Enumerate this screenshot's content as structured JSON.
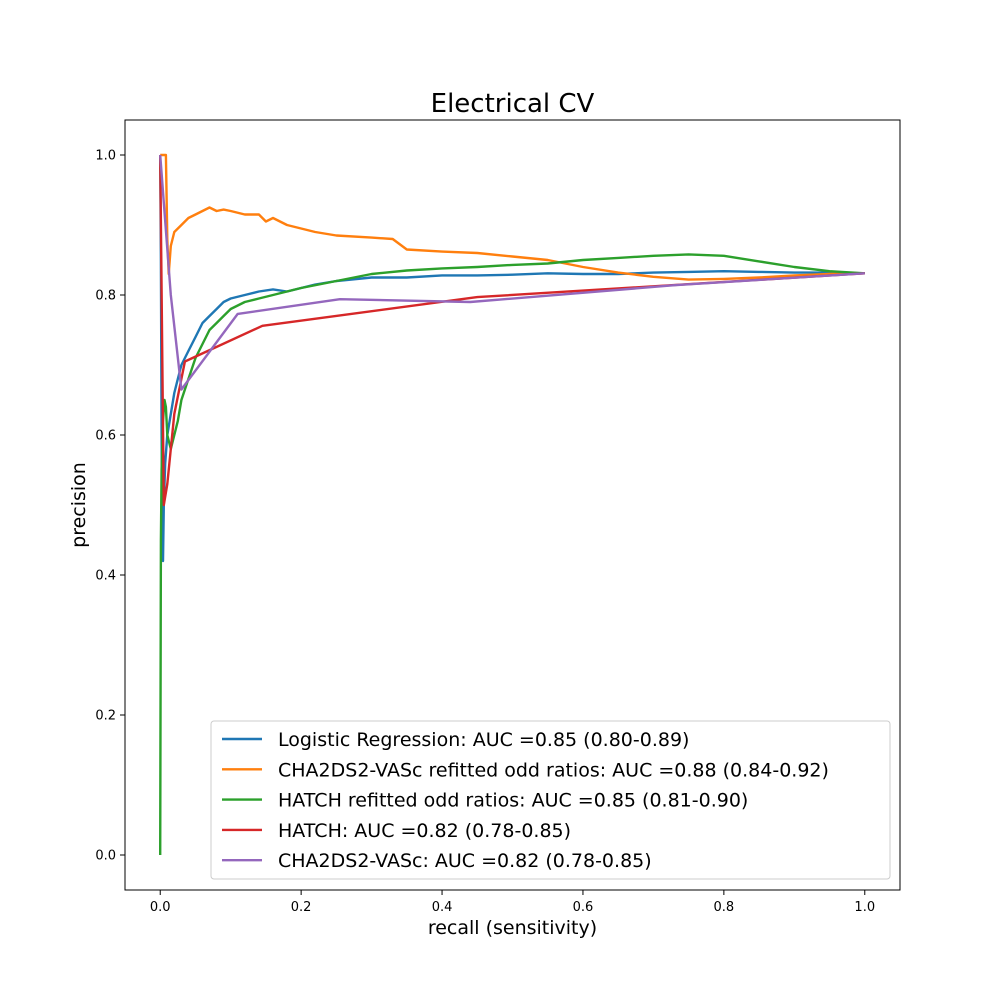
{
  "chart_data": {
    "type": "line",
    "title": "Electrical CV",
    "xlabel": "recall (sensitivity)",
    "ylabel": "precision",
    "xlim": [
      -0.05,
      1.05
    ],
    "ylim": [
      -0.05,
      1.05
    ],
    "xticks": [
      0.0,
      0.2,
      0.4,
      0.6,
      0.8,
      1.0
    ],
    "yticks": [
      0.0,
      0.2,
      0.4,
      0.6,
      0.8,
      1.0
    ],
    "xtick_labels": [
      "0.0",
      "0.2",
      "0.4",
      "0.6",
      "0.8",
      "1.0"
    ],
    "ytick_labels": [
      "0.0",
      "0.2",
      "0.4",
      "0.6",
      "0.8",
      "1.0"
    ],
    "grid": false,
    "legend_position": "lower-right",
    "series": [
      {
        "name": "Logistic Regression: AUC =0.85 (0.80-0.89)",
        "color": "#1f77b4",
        "x": [
          0.0,
          0.001,
          0.002,
          0.003,
          0.004,
          0.005,
          0.007,
          0.01,
          0.015,
          0.02,
          0.025,
          0.03,
          0.035,
          0.04,
          0.05,
          0.06,
          0.07,
          0.08,
          0.09,
          0.1,
          0.12,
          0.14,
          0.16,
          0.18,
          0.2,
          0.22,
          0.25,
          0.3,
          0.35,
          0.4,
          0.45,
          0.5,
          0.55,
          0.6,
          0.65,
          0.7,
          0.75,
          0.8,
          0.85,
          0.9,
          0.95,
          1.0
        ],
        "y": [
          1.0,
          0.85,
          0.6,
          0.45,
          0.42,
          0.5,
          0.56,
          0.6,
          0.63,
          0.66,
          0.68,
          0.7,
          0.71,
          0.72,
          0.74,
          0.76,
          0.77,
          0.78,
          0.79,
          0.795,
          0.8,
          0.805,
          0.808,
          0.805,
          0.81,
          0.815,
          0.82,
          0.825,
          0.825,
          0.828,
          0.828,
          0.829,
          0.831,
          0.83,
          0.83,
          0.832,
          0.833,
          0.834,
          0.833,
          0.832,
          0.832,
          0.831
        ]
      },
      {
        "name": "CHA2DS2-VASc refitted odd ratios: AUC =0.88 (0.84-0.92)",
        "color": "#ff7f0e",
        "x": [
          0.0,
          0.003,
          0.006,
          0.008,
          0.01,
          0.012,
          0.015,
          0.02,
          0.03,
          0.04,
          0.05,
          0.06,
          0.07,
          0.08,
          0.09,
          0.1,
          0.12,
          0.14,
          0.15,
          0.16,
          0.18,
          0.2,
          0.22,
          0.25,
          0.3,
          0.33,
          0.35,
          0.4,
          0.45,
          0.5,
          0.55,
          0.6,
          0.65,
          0.7,
          0.75,
          0.8,
          0.85,
          0.9,
          0.95,
          1.0
        ],
        "y": [
          1.0,
          1.0,
          1.0,
          1.0,
          0.88,
          0.83,
          0.87,
          0.89,
          0.9,
          0.91,
          0.915,
          0.92,
          0.925,
          0.92,
          0.922,
          0.92,
          0.915,
          0.915,
          0.905,
          0.91,
          0.9,
          0.895,
          0.89,
          0.885,
          0.882,
          0.88,
          0.865,
          0.862,
          0.86,
          0.855,
          0.85,
          0.84,
          0.832,
          0.826,
          0.822,
          0.823,
          0.825,
          0.828,
          0.83,
          0.831
        ]
      },
      {
        "name": "HATCH refitted odd ratios: AUC =0.85 (0.81-0.90)",
        "color": "#2ca02c",
        "x": [
          0.0,
          0.001,
          0.002,
          0.004,
          0.006,
          0.008,
          0.01,
          0.015,
          0.02,
          0.025,
          0.03,
          0.04,
          0.05,
          0.06,
          0.07,
          0.08,
          0.09,
          0.1,
          0.12,
          0.14,
          0.16,
          0.18,
          0.2,
          0.25,
          0.3,
          0.35,
          0.4,
          0.45,
          0.5,
          0.55,
          0.6,
          0.65,
          0.7,
          0.75,
          0.8,
          0.85,
          0.9,
          0.95,
          1.0
        ],
        "y": [
          0.0,
          0.45,
          0.55,
          0.62,
          0.65,
          0.64,
          0.6,
          0.58,
          0.6,
          0.62,
          0.65,
          0.68,
          0.71,
          0.73,
          0.75,
          0.76,
          0.77,
          0.78,
          0.79,
          0.795,
          0.8,
          0.805,
          0.81,
          0.82,
          0.83,
          0.835,
          0.838,
          0.84,
          0.843,
          0.845,
          0.85,
          0.853,
          0.856,
          0.858,
          0.856,
          0.848,
          0.84,
          0.834,
          0.831
        ]
      },
      {
        "name": "HATCH: AUC =0.82 (0.78-0.85)",
        "color": "#d62728",
        "x": [
          0.0,
          0.005,
          0.01,
          0.02,
          0.035,
          0.145,
          0.45,
          1.0
        ],
        "y": [
          1.0,
          0.5,
          0.53,
          0.63,
          0.705,
          0.756,
          0.797,
          0.831
        ]
      },
      {
        "name": "CHA2DS2-VASc: AUC =0.82 (0.78-0.85)",
        "color": "#9467bd",
        "x": [
          0.0,
          0.015,
          0.03,
          0.11,
          0.255,
          0.44,
          0.73,
          1.0
        ],
        "y": [
          1.0,
          0.8,
          0.665,
          0.773,
          0.794,
          0.79,
          0.814,
          0.831
        ]
      }
    ]
  }
}
